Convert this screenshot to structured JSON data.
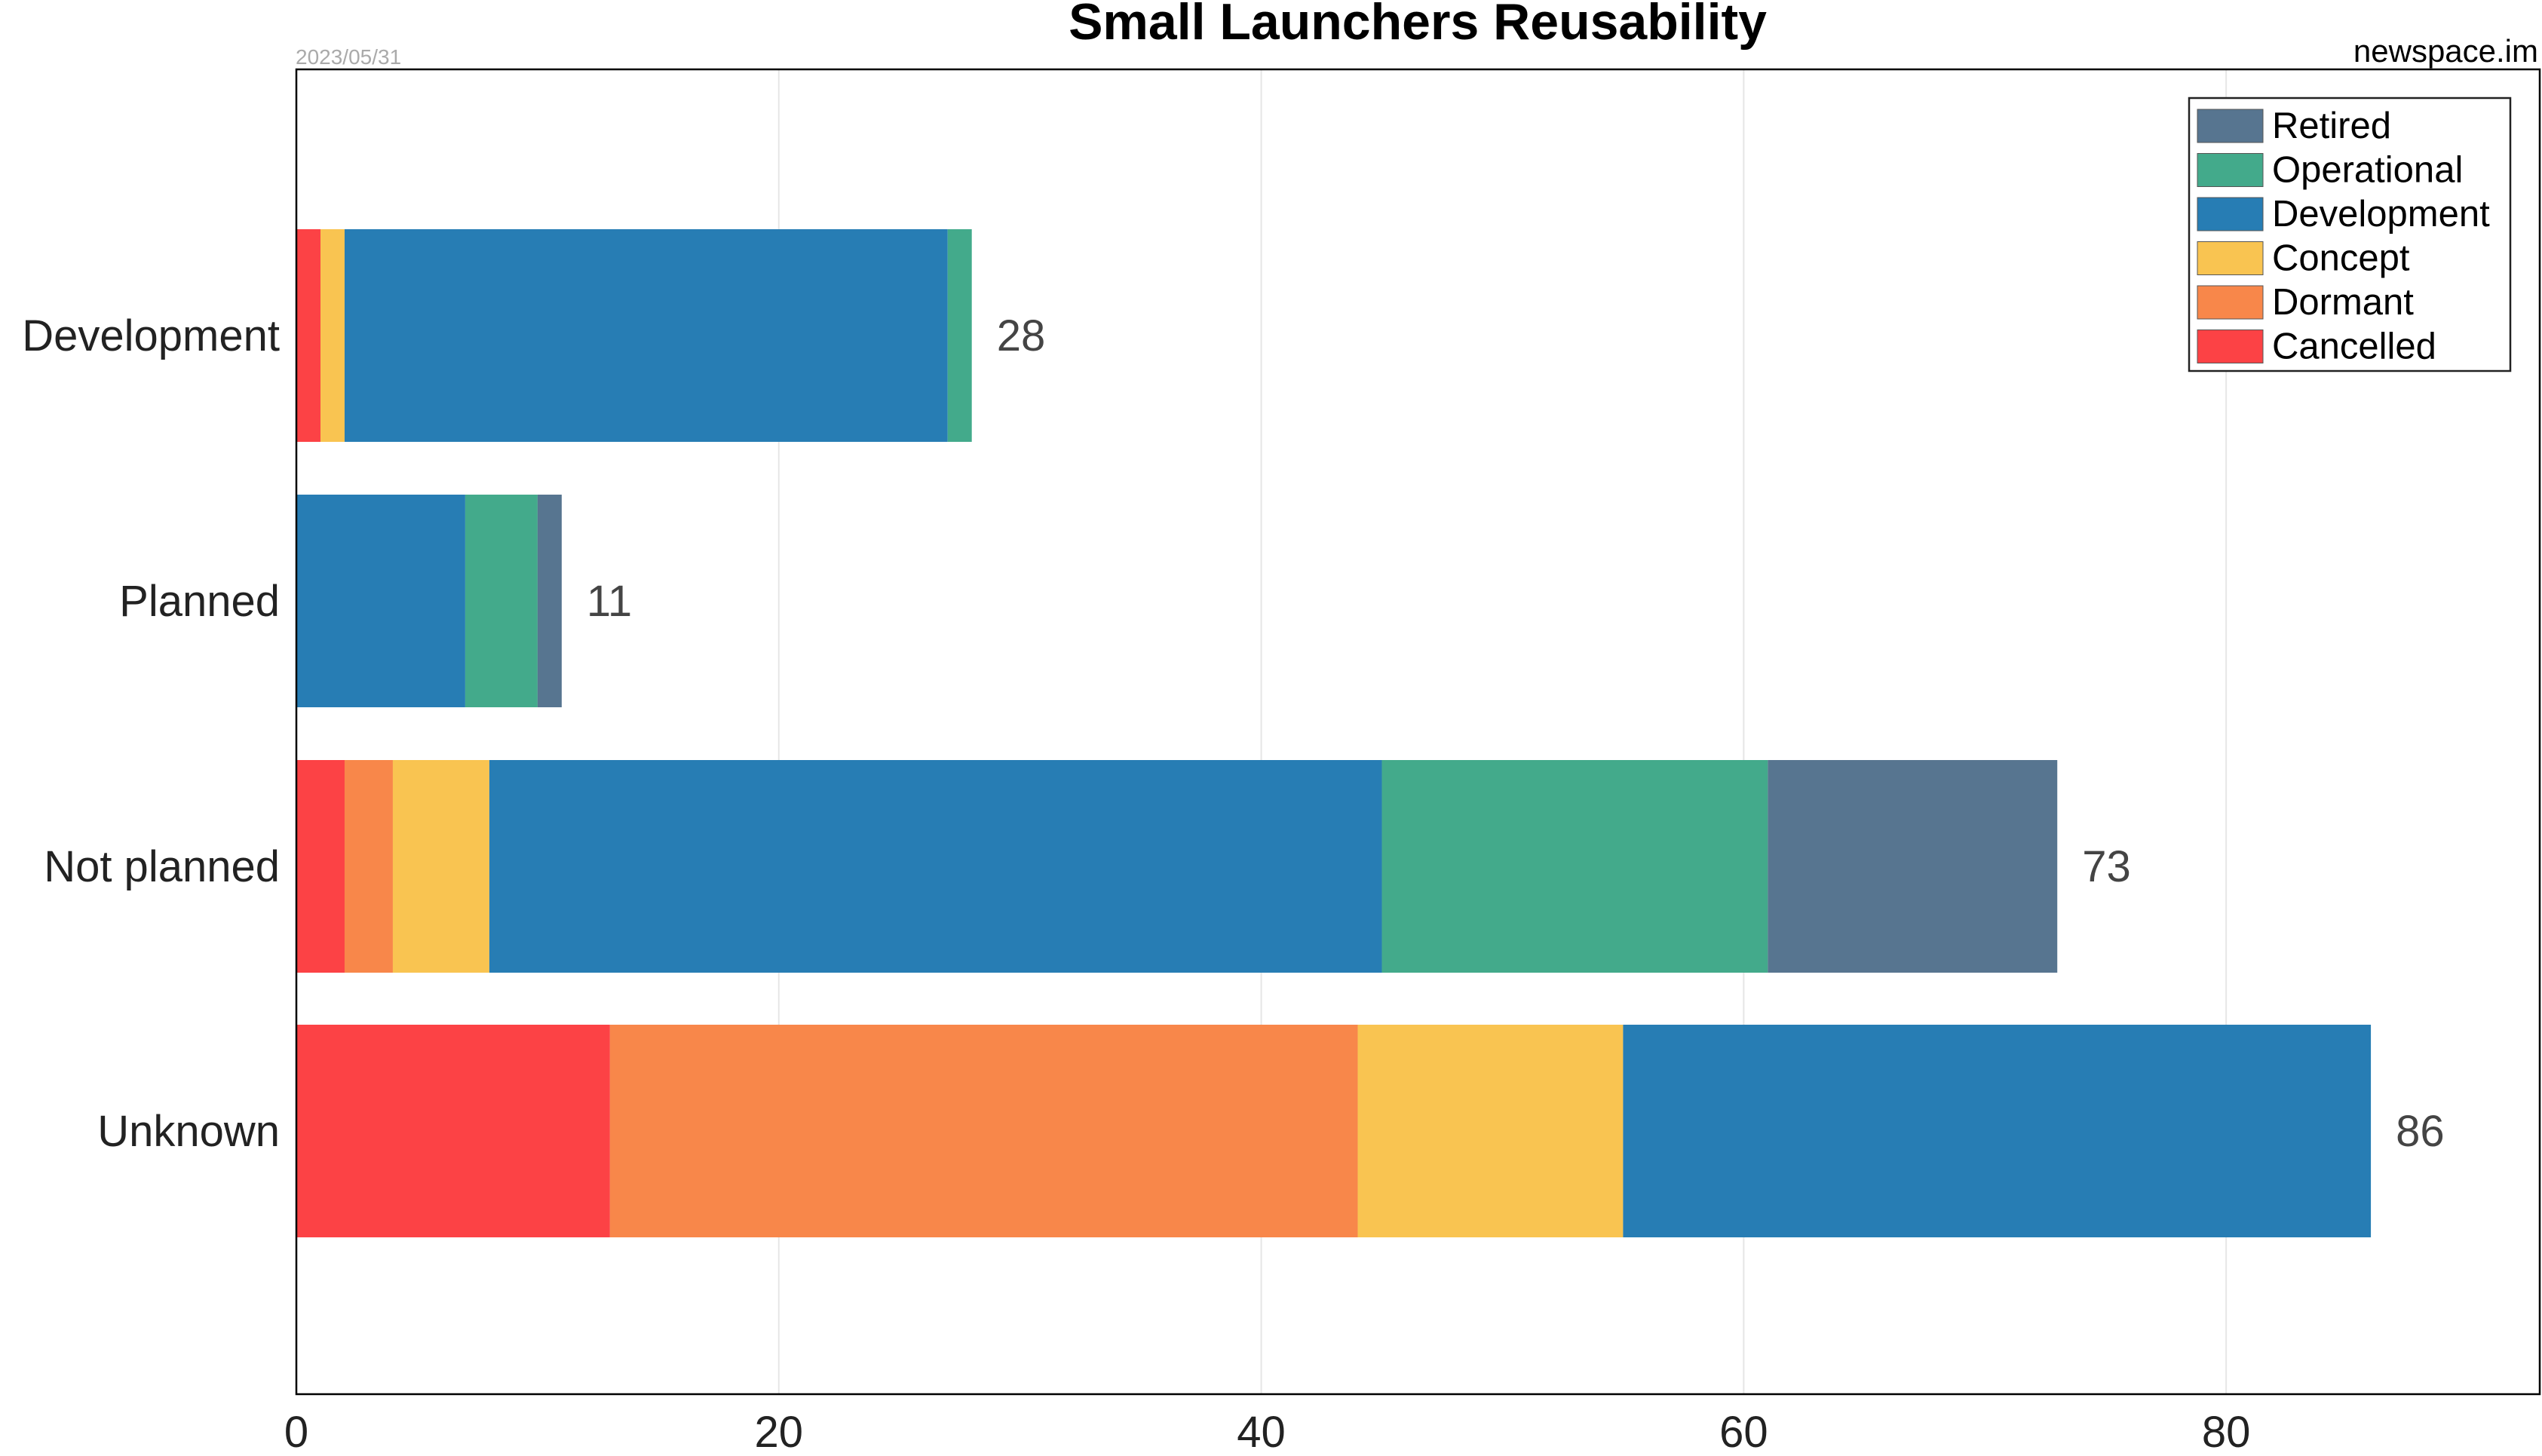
{
  "chart_data": {
    "type": "bar",
    "orientation": "horizontal",
    "stacked": true,
    "title": "Small Launchers Reusability",
    "date": "2023/05/31",
    "source": "newspace.im",
    "xlabel": "",
    "ylabel": "",
    "categories": [
      "Development",
      "Planned",
      "Not planned",
      "Unknown"
    ],
    "xlim": [
      0,
      93
    ],
    "xticks": [
      0,
      20,
      40,
      60,
      80
    ],
    "grid": true,
    "legend_position": "top-right",
    "series": [
      {
        "name": "Cancelled",
        "color": "#fc4245",
        "values": [
          1,
          0,
          2,
          13
        ]
      },
      {
        "name": "Dormant",
        "color": "#f8874a",
        "values": [
          0,
          0,
          2,
          31
        ]
      },
      {
        "name": "Concept",
        "color": "#f9c451",
        "values": [
          1,
          0,
          4,
          11
        ]
      },
      {
        "name": "Development",
        "color": "#277db4",
        "values": [
          25,
          7,
          37,
          31
        ]
      },
      {
        "name": "Operational",
        "color": "#43aa8b",
        "values": [
          1,
          3,
          16,
          0
        ]
      },
      {
        "name": "Retired",
        "color": "#577590",
        "values": [
          0,
          1,
          12,
          0
        ]
      }
    ],
    "totals": [
      "28",
      "11",
      "73",
      "86"
    ]
  }
}
